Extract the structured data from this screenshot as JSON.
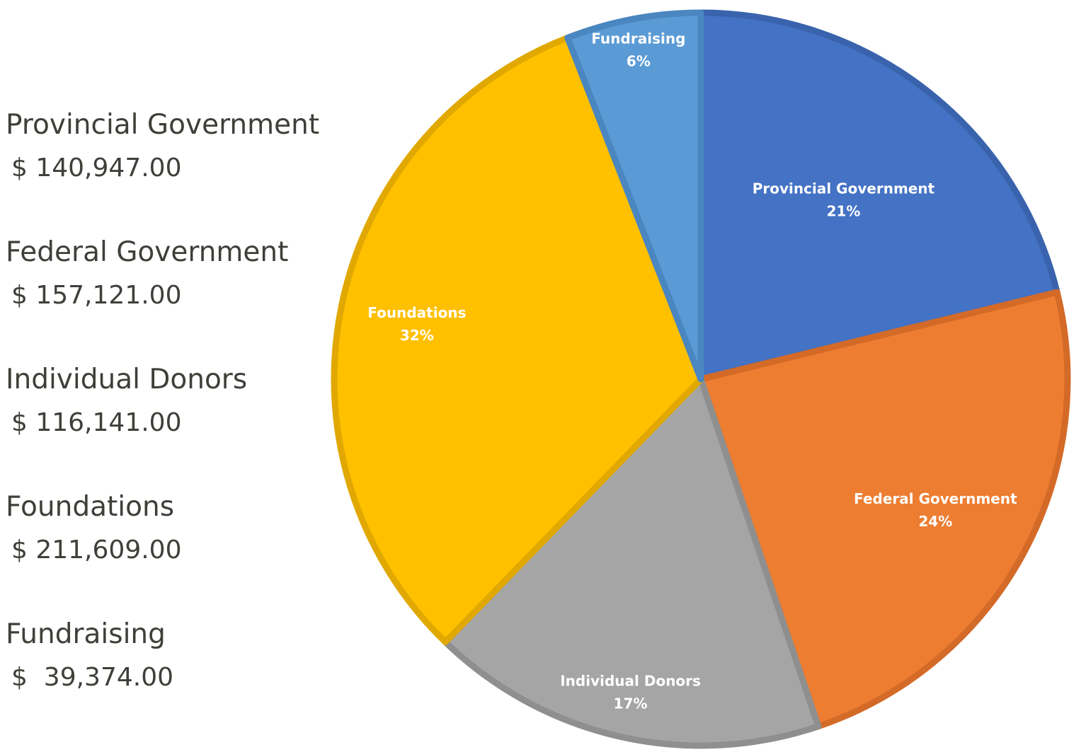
{
  "legend": [
    {
      "name": "Provincial Government",
      "amount": "$ 140,947.00"
    },
    {
      "name": "Federal Government",
      "amount": "$ 157,121.00"
    },
    {
      "name": "Individual Donors",
      "amount": "$ 116,141.00"
    },
    {
      "name": "Foundations",
      "amount": "$ 211,609.00"
    },
    {
      "name": "Fundraising",
      "amount": "$  39,374.00"
    }
  ],
  "chart_data": {
    "type": "pie",
    "categories": [
      "Provincial Government",
      "Federal Government",
      "Individual Donors",
      "Foundations",
      "Fundraising"
    ],
    "values": [
      140947,
      157121,
      116141,
      211609,
      39374
    ],
    "percent_labels": [
      "21%",
      "24%",
      "17%",
      "32%",
      "6%"
    ],
    "colors": [
      "#4472c4",
      "#ed7d31",
      "#a5a5a5",
      "#ffc000",
      "#5b9bd5"
    ],
    "edge_colors": [
      "#3a63ad",
      "#d46a27",
      "#8f8f8f",
      "#e0a800",
      "#4a86c0"
    ],
    "start_angle_deg": 0,
    "direction": "clockwise",
    "title": "",
    "legend": "none"
  }
}
